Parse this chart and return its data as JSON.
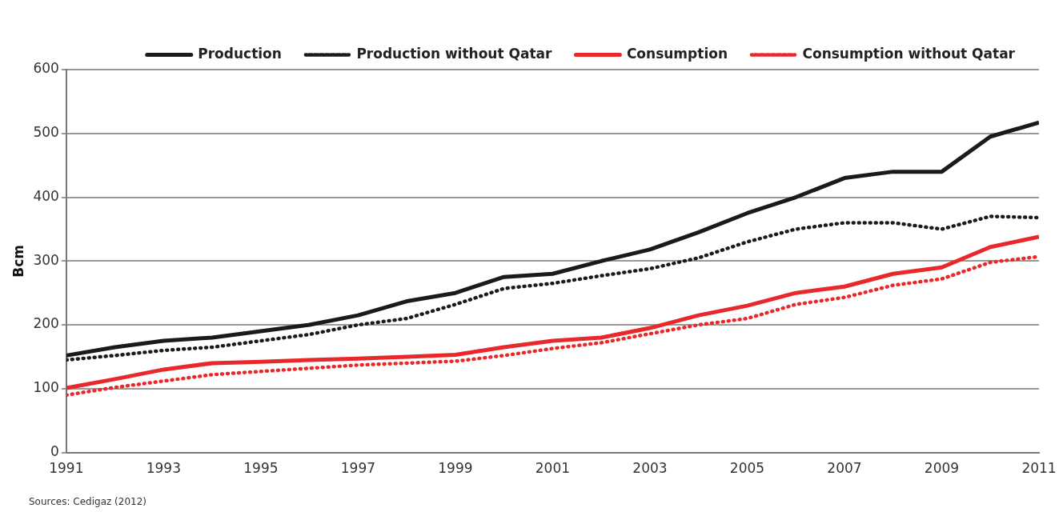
{
  "chart_data": {
    "type": "line",
    "ylabel": "Bcm",
    "x": [
      1991,
      1992,
      1993,
      1994,
      1995,
      1996,
      1997,
      1998,
      1999,
      2000,
      2001,
      2002,
      2003,
      2004,
      2005,
      2006,
      2007,
      2008,
      2009,
      2010,
      2011
    ],
    "series": [
      {
        "name": "Production",
        "color": "#1a1a1a",
        "line_style": "solid",
        "values": [
          152,
          165,
          175,
          180,
          190,
          200,
          215,
          237,
          250,
          275,
          280,
          300,
          318,
          345,
          375,
          400,
          430,
          440,
          440,
          495,
          517
        ]
      },
      {
        "name": "Production without Qatar",
        "color": "#1a1a1a",
        "line_style": "dotted",
        "values": [
          145,
          152,
          160,
          165,
          175,
          185,
          200,
          210,
          232,
          257,
          265,
          277,
          288,
          305,
          330,
          350,
          360,
          360,
          350,
          370,
          368
        ]
      },
      {
        "name": "Consumption",
        "color": "#e8282b",
        "line_style": "solid",
        "values": [
          101,
          115,
          130,
          140,
          142,
          145,
          147,
          150,
          153,
          165,
          175,
          180,
          195,
          215,
          230,
          250,
          260,
          280,
          290,
          322,
          338
        ]
      },
      {
        "name": "Consumption without Qatar",
        "color": "#e8282b",
        "line_style": "dotted",
        "values": [
          90,
          102,
          112,
          122,
          127,
          132,
          137,
          140,
          143,
          152,
          163,
          172,
          186,
          200,
          210,
          232,
          243,
          262,
          272,
          298,
          307
        ]
      }
    ],
    "xlim": [
      1991,
      2011
    ],
    "xticks": [
      1991,
      1993,
      1995,
      1997,
      1999,
      2001,
      2003,
      2005,
      2007,
      2009,
      2011
    ],
    "ylim": [
      0,
      600
    ],
    "yticks": [
      0,
      100,
      200,
      300,
      400,
      500,
      600
    ],
    "grid": "y",
    "legend": "top",
    "marker": "none",
    "annotations": [
      "Sources: Cedigaz (2012)"
    ]
  }
}
